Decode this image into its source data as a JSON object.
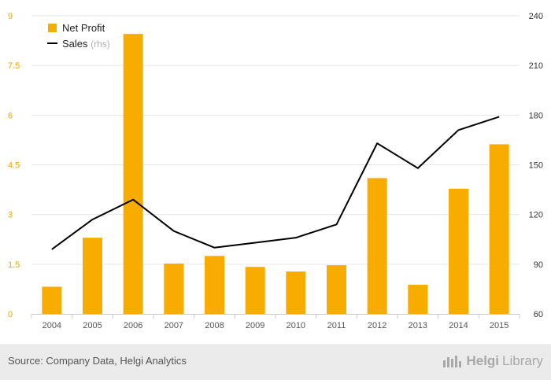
{
  "chart_data": {
    "type": "bar",
    "categories": [
      "2004",
      "2005",
      "2006",
      "2007",
      "2008",
      "2009",
      "2010",
      "2011",
      "2012",
      "2013",
      "2014",
      "2015"
    ],
    "series": [
      {
        "name": "Net Profit",
        "type": "bar",
        "axis": "left",
        "color": "#f8ac00",
        "values": [
          0.82,
          2.3,
          8.45,
          1.52,
          1.75,
          1.42,
          1.28,
          1.47,
          4.1,
          0.88,
          3.78,
          5.12
        ]
      },
      {
        "name": "Sales",
        "type": "line",
        "axis": "right",
        "color": "#000000",
        "values": [
          99,
          117,
          129,
          110,
          100,
          103,
          106,
          114,
          163,
          148,
          171,
          179
        ]
      }
    ],
    "legend": {
      "profit_label": "Net Profit",
      "sales_label": "Sales",
      "sales_suffix": "(rhs)",
      "position": "top-left"
    },
    "y_left": {
      "lim": [
        0,
        9
      ],
      "ticks": [
        "0",
        "1.5",
        "3",
        "4.5",
        "6",
        "7.5",
        "9"
      ],
      "tick_values": [
        0,
        1.5,
        3,
        4.5,
        6,
        7.5,
        9
      ]
    },
    "y_right": {
      "lim": [
        60,
        240
      ],
      "ticks": [
        "60",
        "90",
        "120",
        "150",
        "180",
        "210",
        "240"
      ],
      "tick_values": [
        60,
        90,
        120,
        150,
        180,
        210,
        240
      ]
    },
    "grid": true
  },
  "footer": {
    "source": "Source: Company Data, Helgi Analytics",
    "brand_bold": "Helgi",
    "brand_rest": "Library"
  }
}
